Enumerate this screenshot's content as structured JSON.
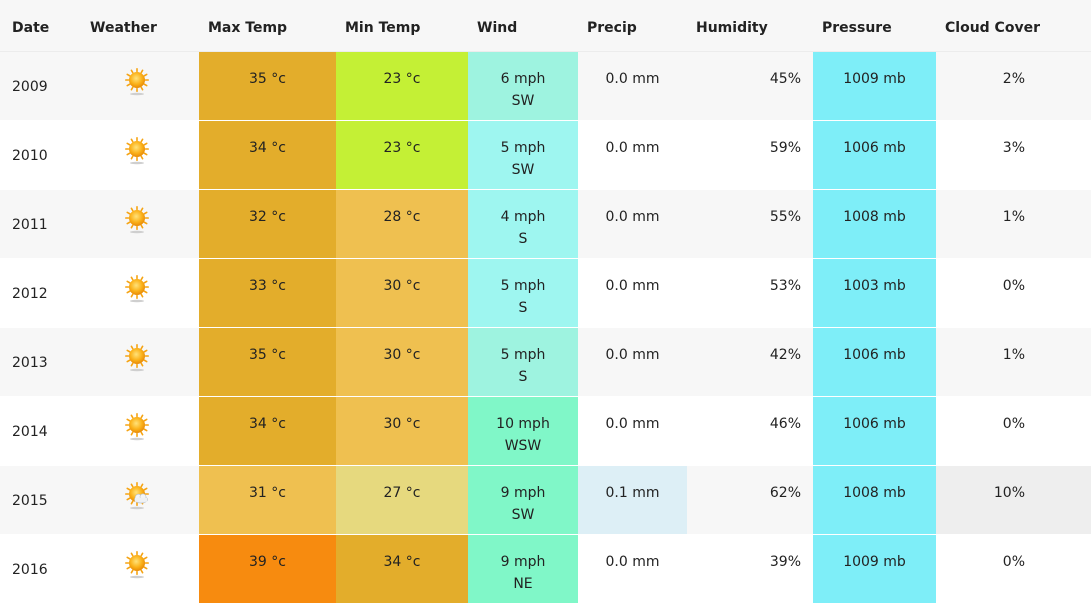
{
  "header": {
    "date": "Date",
    "weather": "Weather",
    "max_temp": "Max Temp",
    "min_temp": "Min Temp",
    "wind": "Wind",
    "precip": "Precip",
    "humidity": "Humidity",
    "pressure": "Pressure",
    "cloud_cover": "Cloud Cover"
  },
  "colors": {
    "max_temp_bg": [
      "#e3ad2b",
      "#e3ad2b",
      "#e3ad2b",
      "#e3ad2b",
      "#e3ad2b",
      "#e3ad2b",
      "#efc050",
      "#f78b0f"
    ],
    "min_temp_bg": [
      "#c4f035",
      "#c4f035",
      "#efc050",
      "#efc050",
      "#efc050",
      "#efc050",
      "#e6d97e",
      "#e3ad2b"
    ],
    "wind_bg": [
      "#9ef3e0",
      "#9ef6f0",
      "#9ef6f0",
      "#9ef6f0",
      "#9ef3e0",
      "#80f7c8",
      "#80f7c8",
      "#80f7c8"
    ],
    "precip_bg": [
      "",
      "",
      "",
      "",
      "",
      "",
      "#ddeff6",
      ""
    ],
    "pressure_bg": "#7eeef8",
    "cloud_bg": [
      "",
      "",
      "",
      "",
      "",
      "",
      "#eeeeee",
      ""
    ],
    "zebra": "#f7f7f7"
  },
  "rows": [
    {
      "date": "2009",
      "weather_icon": "sunny-icon",
      "max_temp": "35 °c",
      "min_temp": "23 °c",
      "wind_speed": "6 mph",
      "wind_dir": "SW",
      "precip": "0.0 mm",
      "humidity": "45%",
      "pressure": "1009 mb",
      "cloud_cover": "2%"
    },
    {
      "date": "2010",
      "weather_icon": "sunny-icon",
      "max_temp": "34 °c",
      "min_temp": "23 °c",
      "wind_speed": "5 mph",
      "wind_dir": "SW",
      "precip": "0.0 mm",
      "humidity": "59%",
      "pressure": "1006 mb",
      "cloud_cover": "3%"
    },
    {
      "date": "2011",
      "weather_icon": "sunny-icon",
      "max_temp": "32 °c",
      "min_temp": "28 °c",
      "wind_speed": "4 mph",
      "wind_dir": "S",
      "precip": "0.0 mm",
      "humidity": "55%",
      "pressure": "1008 mb",
      "cloud_cover": "1%"
    },
    {
      "date": "2012",
      "weather_icon": "sunny-icon",
      "max_temp": "33 °c",
      "min_temp": "30 °c",
      "wind_speed": "5 mph",
      "wind_dir": "S",
      "precip": "0.0 mm",
      "humidity": "53%",
      "pressure": "1003 mb",
      "cloud_cover": "0%"
    },
    {
      "date": "2013",
      "weather_icon": "sunny-icon",
      "max_temp": "35 °c",
      "min_temp": "30 °c",
      "wind_speed": "5 mph",
      "wind_dir": "S",
      "precip": "0.0 mm",
      "humidity": "42%",
      "pressure": "1006 mb",
      "cloud_cover": "1%"
    },
    {
      "date": "2014",
      "weather_icon": "sunny-icon",
      "max_temp": "34 °c",
      "min_temp": "30 °c",
      "wind_speed": "10 mph",
      "wind_dir": "WSW",
      "precip": "0.0 mm",
      "humidity": "46%",
      "pressure": "1006 mb",
      "cloud_cover": "0%"
    },
    {
      "date": "2015",
      "weather_icon": "partly-cloudy-icon",
      "max_temp": "31 °c",
      "min_temp": "27 °c",
      "wind_speed": "9 mph",
      "wind_dir": "SW",
      "precip": "0.1 mm",
      "humidity": "62%",
      "pressure": "1008 mb",
      "cloud_cover": "10%"
    },
    {
      "date": "2016",
      "weather_icon": "sunny-icon",
      "max_temp": "39 °c",
      "min_temp": "34 °c",
      "wind_speed": "9 mph",
      "wind_dir": "NE",
      "precip": "0.0 mm",
      "humidity": "39%",
      "pressure": "1009 mb",
      "cloud_cover": "0%"
    }
  ]
}
